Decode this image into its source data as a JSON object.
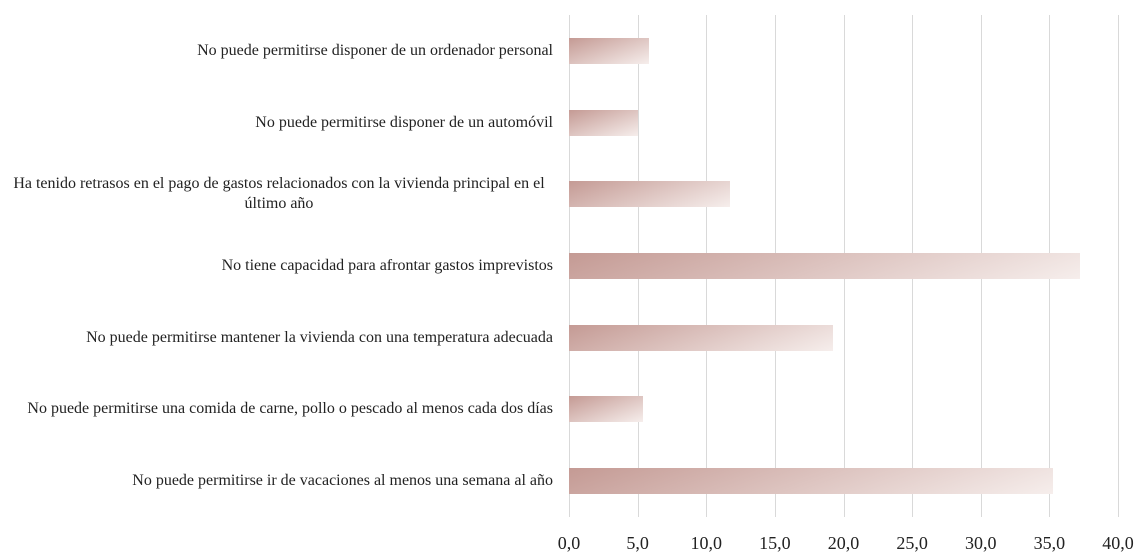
{
  "chart_data": {
    "type": "barh",
    "categories": [
      "No puede permitirse disponer de un ordenador personal",
      "No puede permitirse disponer de un automóvil",
      "Ha tenido retrasos en el pago de gastos relacionados con la vivienda principal en el último año",
      "No tiene capacidad para afrontar gastos imprevistos",
      "No puede permitirse mantener la vivienda con una temperatura adecuada",
      "No puede permitirse una comida de carne, pollo o pescado al menos cada dos días",
      "No puede permitirse ir de vacaciones al menos una semana al año"
    ],
    "values": [
      5.8,
      5.0,
      11.7,
      37.2,
      19.2,
      5.4,
      35.3
    ],
    "color": "#c49a94",
    "xlim": [
      0,
      40
    ],
    "xticks": [
      {
        "value": 0,
        "label": "0,0"
      },
      {
        "value": 5,
        "label": "5,0"
      },
      {
        "value": 10,
        "label": "10,0"
      },
      {
        "value": 15,
        "label": "15,0"
      },
      {
        "value": 20,
        "label": "20,0"
      },
      {
        "value": 25,
        "label": "25,0"
      },
      {
        "value": 30,
        "label": "30,0"
      },
      {
        "value": 35,
        "label": "35,0"
      },
      {
        "value": 40,
        "label": "40,0"
      }
    ],
    "grid": true
  }
}
